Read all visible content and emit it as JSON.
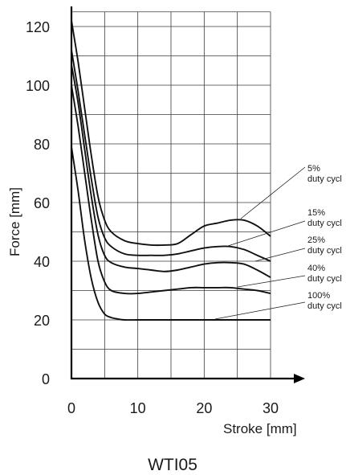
{
  "chart_data": {
    "type": "line",
    "title": "",
    "caption": "WTI05",
    "xlabel": "Stroke [mm]",
    "ylabel": "Force [mm]",
    "xlim": [
      0,
      30
    ],
    "ylim": [
      0,
      125
    ],
    "grid": true,
    "x_ticks": [
      0,
      10,
      20,
      30
    ],
    "y_ticks": [
      0,
      20,
      40,
      60,
      80,
      100,
      120
    ],
    "annotations": [
      {
        "line1": "5%",
        "line2": "duty cycl"
      },
      {
        "line1": "15%",
        "line2": "duty cycl"
      },
      {
        "line1": "25%",
        "line2": "duty cycl"
      },
      {
        "line1": "40%",
        "line2": "duty cycl"
      },
      {
        "line1": "100%",
        "line2": "duty cycl"
      }
    ],
    "series": [
      {
        "x": [
          0,
          1,
          2,
          3,
          4,
          5,
          6,
          8,
          10,
          12,
          14,
          16,
          18,
          20,
          22,
          24,
          26,
          28,
          30
        ],
        "y": [
          122,
          108,
          92,
          76,
          62,
          54,
          50,
          47,
          46,
          45.5,
          45.5,
          46,
          49,
          52,
          53,
          54,
          54,
          52,
          48.5
        ]
      },
      {
        "x": [
          0,
          1,
          2,
          3,
          4,
          5,
          6,
          8,
          10,
          12,
          14,
          16,
          18,
          20,
          22,
          24,
          26,
          28,
          30
        ],
        "y": [
          112,
          98,
          83,
          68,
          55,
          48,
          45,
          42.5,
          42,
          42,
          42,
          42.5,
          43.5,
          44.5,
          45,
          45,
          44,
          42,
          40
        ]
      },
      {
        "x": [
          0,
          1,
          2,
          3,
          4,
          5,
          6,
          8,
          10,
          12,
          14,
          16,
          18,
          20,
          22,
          24,
          26,
          28,
          30
        ],
        "y": [
          107,
          94,
          78,
          62,
          49,
          42,
          39.5,
          38,
          37.5,
          37,
          36.5,
          37,
          38,
          39,
          39.5,
          39.5,
          39,
          37,
          34.5
        ]
      },
      {
        "x": [
          0,
          1,
          2,
          3,
          4,
          5,
          6,
          8,
          10,
          12,
          14,
          16,
          18,
          20,
          22,
          24,
          26,
          28,
          30
        ],
        "y": [
          100,
          86,
          70,
          54,
          40,
          33,
          30,
          29,
          29,
          29.5,
          30,
          30.5,
          31,
          31,
          31,
          31,
          30.5,
          30,
          29
        ]
      },
      {
        "x": [
          0,
          1,
          2,
          3,
          4,
          5,
          6,
          7,
          8,
          10,
          12,
          15,
          20,
          25,
          30
        ],
        "y": [
          79,
          64,
          47,
          34,
          26,
          22,
          20.8,
          20.3,
          20,
          20,
          20,
          20,
          20,
          20,
          20
        ]
      }
    ]
  }
}
